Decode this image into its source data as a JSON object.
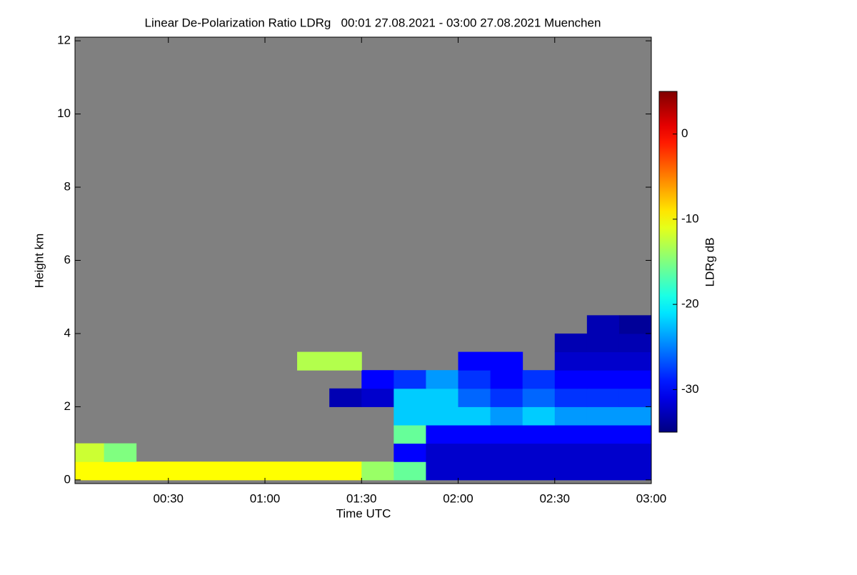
{
  "chart_data": {
    "type": "heatmap",
    "title": "Linear De-Polarization Ratio LDRg   00:01 27.08.2021 - 03:00 27.08.2021 Muenchen",
    "x_label": "Time UTC",
    "y_label": "Height km",
    "colorbar_label": "LDRg dB",
    "xlim": [
      1,
      180
    ],
    "ylim": [
      -0.1,
      12.1
    ],
    "xticks": [
      {
        "value": 30,
        "label": "00:30"
      },
      {
        "value": 60,
        "label": "01:00"
      },
      {
        "value": 90,
        "label": "01:30"
      },
      {
        "value": 120,
        "label": "02:00"
      },
      {
        "value": 150,
        "label": "02:30"
      },
      {
        "value": 180,
        "label": "03:00"
      }
    ],
    "yticks": [
      0,
      2,
      4,
      6,
      8,
      10,
      12
    ],
    "zlim": [
      -35,
      5
    ],
    "zticks": [
      0,
      -10,
      -20,
      -30
    ],
    "colormap": "jet",
    "missing_color": "#808080",
    "x_bins": [
      0,
      10,
      20,
      30,
      40,
      50,
      60,
      70,
      80,
      90,
      100,
      110,
      120,
      130,
      140,
      150,
      160,
      170,
      180
    ],
    "y_bins": [
      0,
      0.5,
      1,
      1.5,
      2,
      2.5,
      3,
      3.5,
      4,
      4.5,
      5
    ],
    "z": [
      [
        -10,
        -10,
        -10,
        -10,
        -10,
        -10,
        -10,
        -10,
        -10,
        -14,
        -16,
        -32,
        -32,
        -32,
        -32,
        -32,
        -32,
        -32
      ],
      [
        -12,
        -15,
        null,
        null,
        null,
        null,
        null,
        null,
        null,
        null,
        -30,
        -32,
        -32,
        -32,
        -32,
        -32,
        -32,
        -32
      ],
      [
        null,
        null,
        null,
        null,
        null,
        null,
        null,
        null,
        null,
        null,
        -16,
        -30,
        -30,
        -30,
        -30,
        -30,
        -30,
        -30
      ],
      [
        null,
        null,
        null,
        null,
        null,
        null,
        null,
        null,
        null,
        null,
        -22,
        -22,
        -22,
        -24,
        -22,
        -24,
        -24,
        -24
      ],
      [
        null,
        null,
        null,
        null,
        null,
        null,
        null,
        null,
        -33,
        -32,
        -22,
        -22,
        -26,
        -28,
        -26,
        -28,
        -28,
        -28
      ],
      [
        null,
        null,
        null,
        null,
        null,
        null,
        null,
        null,
        null,
        -30,
        -28,
        -24,
        -28,
        -30,
        -28,
        -30,
        -30,
        -30
      ],
      [
        null,
        null,
        null,
        null,
        null,
        null,
        null,
        -13,
        -13,
        null,
        null,
        null,
        -30,
        -30,
        null,
        -32,
        -32,
        -32
      ],
      [
        null,
        null,
        null,
        null,
        null,
        null,
        null,
        null,
        null,
        null,
        null,
        null,
        null,
        null,
        null,
        -33,
        -33,
        -33
      ],
      [
        null,
        null,
        null,
        null,
        null,
        null,
        null,
        null,
        null,
        null,
        null,
        null,
        null,
        null,
        null,
        null,
        -33,
        -34
      ],
      [
        null,
        null,
        null,
        null,
        null,
        null,
        null,
        null,
        null,
        null,
        null,
        null,
        null,
        null,
        null,
        null,
        null,
        null
      ]
    ]
  }
}
